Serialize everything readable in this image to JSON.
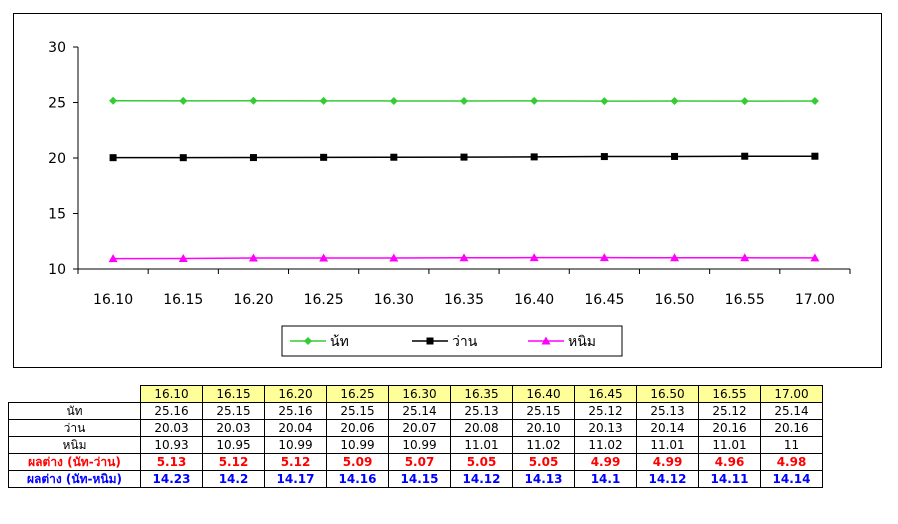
{
  "chart_data": {
    "type": "line",
    "categories": [
      "16.10",
      "16.15",
      "16.20",
      "16.25",
      "16.30",
      "16.35",
      "16.40",
      "16.45",
      "16.50",
      "16.55",
      "17.00"
    ],
    "ylim": [
      10,
      30
    ],
    "yticks": [
      "10",
      "15",
      "20",
      "25",
      "30"
    ],
    "grid": false,
    "legend_position": "bottom",
    "series": [
      {
        "name": "น้ท",
        "color": "#33cc33",
        "marker": "diamond",
        "values": [
          25.16,
          25.15,
          25.16,
          25.15,
          25.14,
          25.13,
          25.15,
          25.12,
          25.13,
          25.12,
          25.14
        ]
      },
      {
        "name": "ว่าน",
        "color": "#000000",
        "marker": "square",
        "values": [
          20.03,
          20.03,
          20.04,
          20.06,
          20.07,
          20.08,
          20.1,
          20.13,
          20.14,
          20.16,
          20.16
        ]
      },
      {
        "name": "หนิม",
        "color": "#ff00ff",
        "marker": "triangle",
        "values": [
          10.93,
          10.95,
          10.99,
          10.99,
          10.99,
          11.01,
          11.02,
          11.02,
          11.01,
          11.01,
          11
        ]
      }
    ]
  },
  "table": {
    "times": [
      "16.10",
      "16.15",
      "16.20",
      "16.25",
      "16.30",
      "16.35",
      "16.40",
      "16.45",
      "16.50",
      "16.55",
      "17.00"
    ],
    "rows": [
      {
        "label": "นัท",
        "cls": "",
        "values": [
          "25.16",
          "25.15",
          "25.16",
          "25.15",
          "25.14",
          "25.13",
          "25.15",
          "25.12",
          "25.13",
          "25.12",
          "25.14"
        ]
      },
      {
        "label": "ว่าน",
        "cls": "",
        "values": [
          "20.03",
          "20.03",
          "20.04",
          "20.06",
          "20.07",
          "20.08",
          "20.10",
          "20.13",
          "20.14",
          "20.16",
          "20.16"
        ]
      },
      {
        "label": "หนิม",
        "cls": "",
        "values": [
          "10.93",
          "10.95",
          "10.99",
          "10.99",
          "10.99",
          "11.01",
          "11.02",
          "11.02",
          "11.01",
          "11.01",
          "11"
        ]
      },
      {
        "label": "ผลต่าง (นัท-ว่าน)",
        "cls": "diff1",
        "values": [
          "5.13",
          "5.12",
          "5.12",
          "5.09",
          "5.07",
          "5.05",
          "5.05",
          "4.99",
          "4.99",
          "4.96",
          "4.98"
        ]
      },
      {
        "label": "ผลต่าง (นัท-หนิม)",
        "cls": "diff2",
        "values": [
          "14.23",
          "14.2",
          "14.17",
          "14.16",
          "14.15",
          "14.12",
          "14.13",
          "14.1",
          "14.12",
          "14.11",
          "14.14"
        ]
      }
    ]
  }
}
